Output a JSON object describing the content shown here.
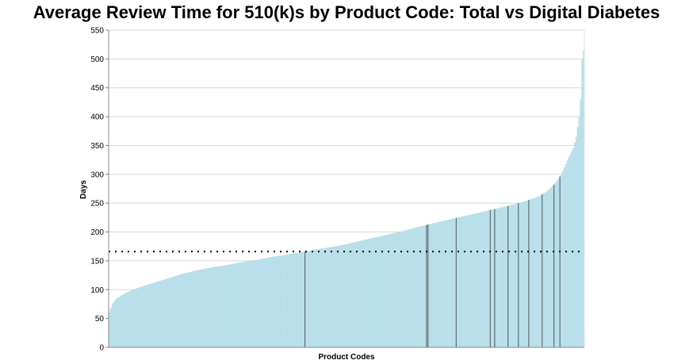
{
  "chart_data": {
    "type": "bar",
    "title": "Average Review Time for 510(k)s by Product Code: Total vs Digital Diabetes",
    "xlabel": "Product Codes",
    "ylabel": "Days",
    "ylim": [
      0,
      550
    ],
    "yticks": [
      0,
      50,
      100,
      150,
      200,
      250,
      300,
      350,
      400,
      450,
      500,
      550
    ],
    "grid": true,
    "reference_line": {
      "value": 166,
      "style": "dotted"
    },
    "sorted_profile": [
      [
        0,
        62
      ],
      [
        2,
        75
      ],
      [
        5,
        85
      ],
      [
        10,
        93
      ],
      [
        15,
        99
      ],
      [
        20,
        104
      ],
      [
        25,
        108
      ],
      [
        30,
        112
      ],
      [
        35,
        116
      ],
      [
        40,
        120
      ],
      [
        45,
        124
      ],
      [
        50,
        128
      ],
      [
        60,
        134
      ],
      [
        70,
        139
      ],
      [
        80,
        143
      ],
      [
        90,
        148
      ],
      [
        100,
        152
      ],
      [
        110,
        157
      ],
      [
        120,
        161
      ],
      [
        130,
        165
      ],
      [
        140,
        170
      ],
      [
        150,
        174
      ],
      [
        160,
        179
      ],
      [
        170,
        185
      ],
      [
        180,
        191
      ],
      [
        190,
        197
      ],
      [
        200,
        203
      ],
      [
        210,
        210
      ],
      [
        220,
        216
      ],
      [
        230,
        222
      ],
      [
        240,
        228
      ],
      [
        250,
        234
      ],
      [
        260,
        240
      ],
      [
        270,
        246
      ],
      [
        280,
        253
      ],
      [
        290,
        262
      ],
      [
        295,
        270
      ],
      [
        300,
        282
      ],
      [
        305,
        300
      ],
      [
        308,
        318
      ],
      [
        310,
        330
      ],
      [
        313,
        345
      ],
      [
        315,
        365
      ],
      [
        317,
        400
      ],
      [
        318,
        430
      ],
      [
        319,
        500
      ],
      [
        320,
        515
      ]
    ],
    "series": [
      {
        "values_note": "Total",
        "color": "#b9e0ea"
      },
      {
        "values_note": "Digital Diabetes",
        "color": "#555555"
      }
    ],
    "highlight_values": [
      166,
      212,
      213,
      224,
      238,
      240,
      245,
      250,
      255,
      265,
      280,
      295
    ]
  }
}
